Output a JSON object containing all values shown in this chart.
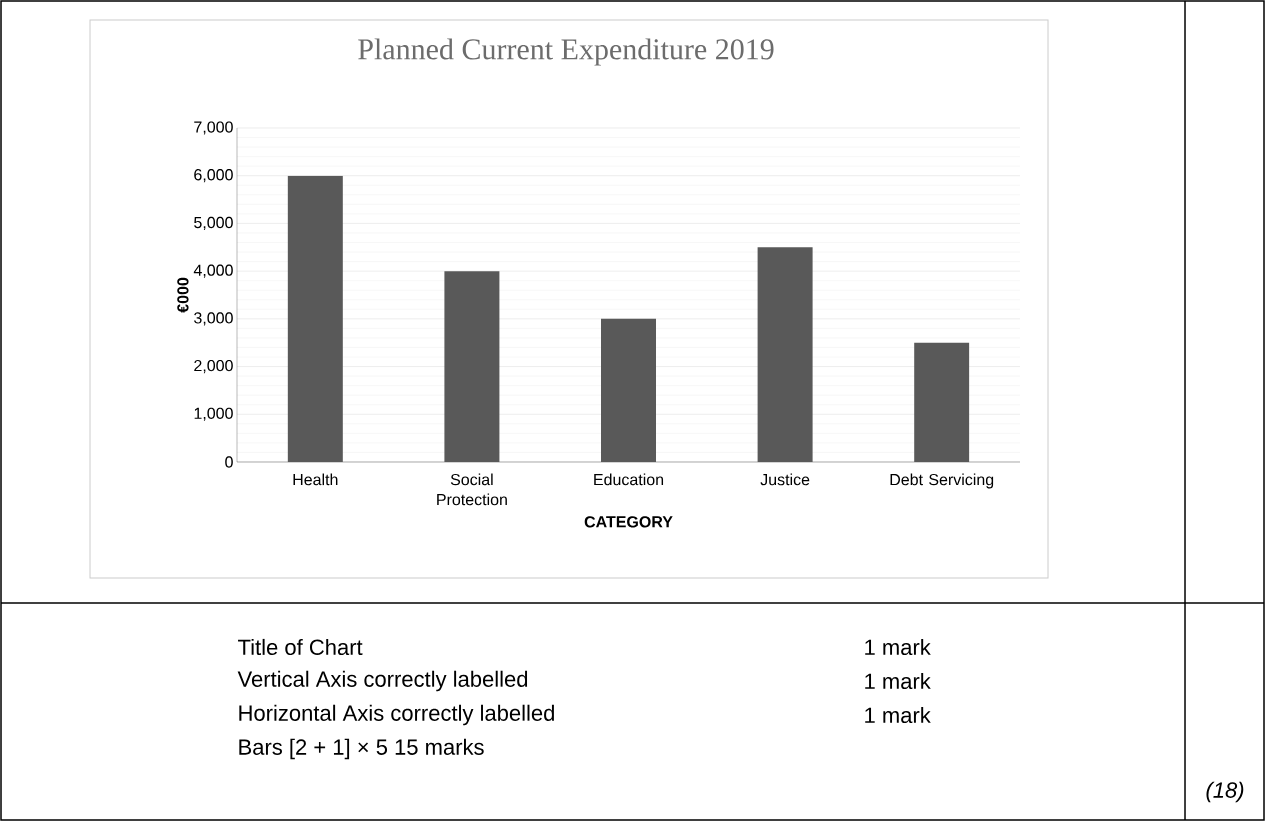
{
  "chart_data": {
    "type": "bar",
    "title": "Planned Current Expenditure 2019",
    "xlabel": "CATEGORY",
    "ylabel": "€000",
    "categories": [
      "Health",
      "Social Protection",
      "Education",
      "Justice",
      "Debt Servicing"
    ],
    "values": [
      6000,
      4000,
      3000,
      4500,
      2500
    ],
    "color": "#595959",
    "ylim": [
      0,
      7000
    ],
    "yticks": [
      0,
      {
        "value": 1000,
        "label": "1,000"
      },
      {
        "value": 2000,
        "label": "2,000"
      },
      {
        "value": 3000,
        "label": "3,000"
      },
      {
        "value": 4000,
        "label": "4,000"
      },
      {
        "value": 5000,
        "label": "5,000"
      },
      {
        "value": 6000,
        "label": "6,000"
      },
      {
        "value": 7000,
        "label": "7,000"
      }
    ],
    "grid": "y",
    "annotations": [
      "Title of Chart",
      "1 mark",
      "Vertical Axis correctly labelled",
      "1 mark",
      "Horizontal Axis correctly labelled",
      "1 mark",
      "Bars    [2 + 1] × 5   15 marks",
      "(18)"
    ]
  }
}
